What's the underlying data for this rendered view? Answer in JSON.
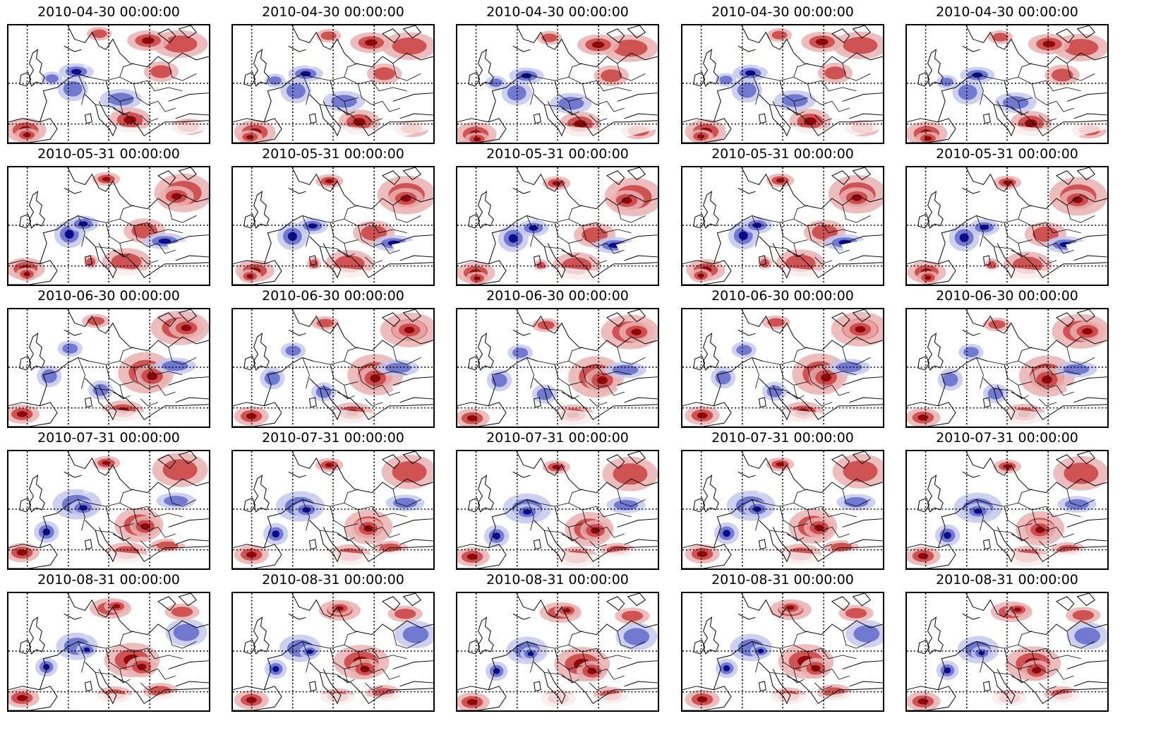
{
  "figure": {
    "rows": [
      {
        "title": "2010-04-30 00:00:00"
      },
      {
        "title": "2010-05-31 00:00:00"
      },
      {
        "title": "2010-06-30 00:00:00"
      },
      {
        "title": "2010-07-31 00:00:00"
      },
      {
        "title": "2010-08-31 00:00:00"
      }
    ],
    "columns": 5,
    "colors": {
      "positive_dark": "#8b0000",
      "positive_mid": "#c8383a",
      "positive_light": "#eab0b0",
      "negative_dark": "#00008b",
      "negative_mid": "#5a64c8",
      "negative_light": "#c4c8ec",
      "coastline": "#000000",
      "graticule": "#000000"
    }
  }
}
